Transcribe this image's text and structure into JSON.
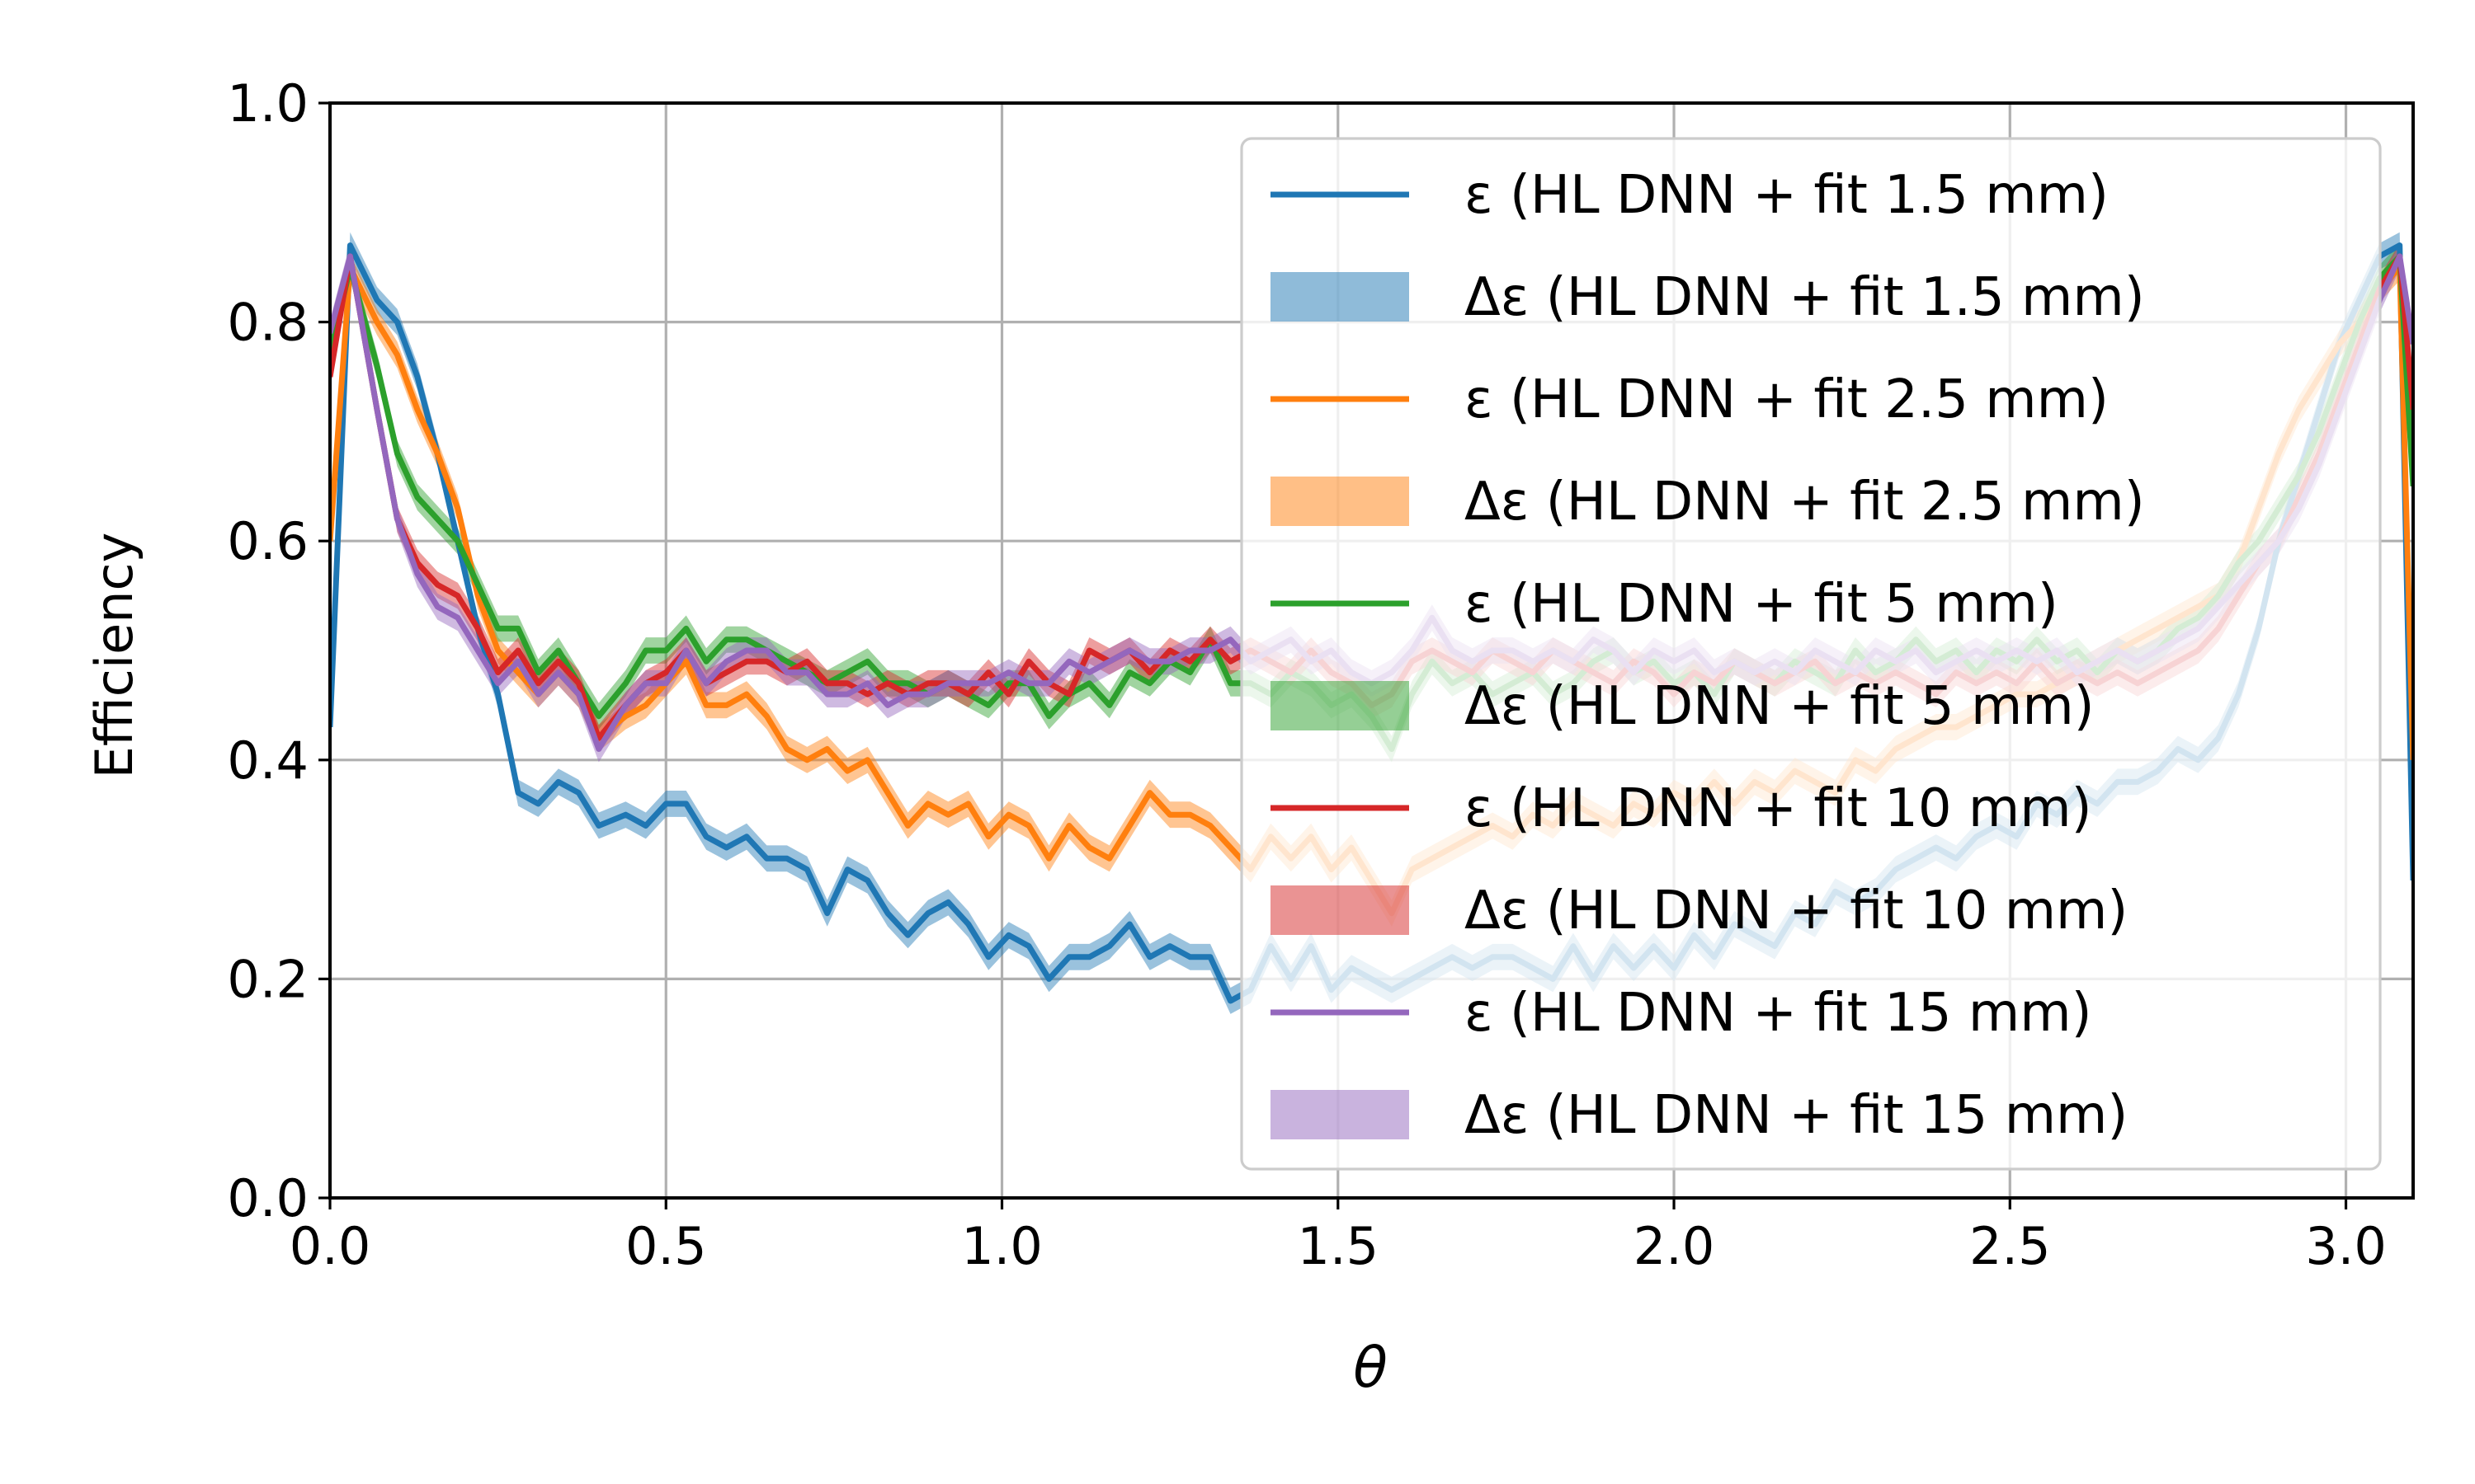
{
  "chart_data": {
    "type": "line",
    "title": "",
    "xlabel": "θ",
    "ylabel": "Efficiency",
    "xlim": [
      0,
      3.1
    ],
    "ylim": [
      0,
      1.0
    ],
    "xticks": [
      "0.0",
      "0.5",
      "1.0",
      "1.5",
      "2.0",
      "2.5",
      "3.0"
    ],
    "yticks": [
      "0.0",
      "0.2",
      "0.4",
      "0.6",
      "0.8",
      "1.0"
    ],
    "grid": true,
    "legend_position": "upper right",
    "band_halfwidth": 0.012,
    "x": [
      0.0,
      0.03,
      0.07,
      0.1,
      0.13,
      0.16,
      0.19,
      0.22,
      0.25,
      0.28,
      0.31,
      0.34,
      0.37,
      0.4,
      0.44,
      0.47,
      0.5,
      0.53,
      0.56,
      0.59,
      0.62,
      0.65,
      0.68,
      0.71,
      0.74,
      0.77,
      0.8,
      0.83,
      0.86,
      0.89,
      0.92,
      0.95,
      0.98,
      1.01,
      1.04,
      1.07,
      1.1,
      1.13,
      1.16,
      1.19,
      1.22,
      1.25,
      1.28,
      1.31,
      1.34,
      1.37,
      1.4,
      1.43,
      1.46,
      1.49,
      1.52,
      1.55,
      1.58,
      1.61,
      1.64,
      1.67,
      1.7,
      1.73,
      1.76,
      1.79,
      1.82,
      1.85,
      1.88,
      1.91,
      1.94,
      1.97,
      2.0,
      2.03,
      2.06,
      2.09,
      2.12,
      2.15,
      2.18,
      2.21,
      2.24,
      2.27,
      2.3,
      2.33,
      2.36,
      2.39,
      2.42,
      2.45,
      2.48,
      2.51,
      2.54,
      2.57,
      2.6,
      2.63,
      2.66,
      2.69,
      2.72,
      2.75,
      2.78,
      2.81,
      2.84,
      2.87,
      2.9,
      2.93,
      2.96,
      2.99,
      3.02,
      3.05,
      3.08,
      3.1
    ],
    "series": [
      {
        "name": "ε (HL DNN + fit 1.5 mm)",
        "band_name": "Δε (HL DNN + fit 1.5 mm)",
        "color": "#1f77b4",
        "values": [
          0.43,
          0.87,
          0.82,
          0.8,
          0.75,
          0.68,
          0.6,
          0.52,
          0.46,
          0.37,
          0.36,
          0.38,
          0.37,
          0.34,
          0.35,
          0.34,
          0.36,
          0.36,
          0.33,
          0.32,
          0.33,
          0.31,
          0.31,
          0.3,
          0.26,
          0.3,
          0.29,
          0.26,
          0.24,
          0.26,
          0.27,
          0.25,
          0.22,
          0.24,
          0.23,
          0.2,
          0.22,
          0.22,
          0.23,
          0.25,
          0.22,
          0.23,
          0.22,
          0.22,
          0.18,
          0.19,
          0.23,
          0.2,
          0.23,
          0.19,
          0.21,
          0.2,
          0.19,
          0.2,
          0.21,
          0.22,
          0.21,
          0.22,
          0.22,
          0.21,
          0.2,
          0.23,
          0.2,
          0.23,
          0.21,
          0.23,
          0.21,
          0.24,
          0.22,
          0.25,
          0.24,
          0.23,
          0.26,
          0.25,
          0.28,
          0.27,
          0.28,
          0.3,
          0.31,
          0.32,
          0.31,
          0.33,
          0.34,
          0.33,
          0.36,
          0.35,
          0.37,
          0.36,
          0.38,
          0.38,
          0.39,
          0.41,
          0.4,
          0.42,
          0.46,
          0.52,
          0.6,
          0.66,
          0.72,
          0.78,
          0.82,
          0.86,
          0.87,
          0.29
        ]
      },
      {
        "name": "ε (HL DNN + fit 2.5 mm)",
        "band_name": "Δε (HL DNN + fit 2.5 mm)",
        "color": "#ff7f0e",
        "values": [
          0.6,
          0.85,
          0.8,
          0.77,
          0.72,
          0.68,
          0.63,
          0.55,
          0.5,
          0.48,
          0.46,
          0.48,
          0.46,
          0.42,
          0.44,
          0.45,
          0.47,
          0.49,
          0.45,
          0.45,
          0.46,
          0.44,
          0.41,
          0.4,
          0.41,
          0.39,
          0.4,
          0.37,
          0.34,
          0.36,
          0.35,
          0.36,
          0.33,
          0.35,
          0.34,
          0.31,
          0.34,
          0.32,
          0.31,
          0.34,
          0.37,
          0.35,
          0.35,
          0.34,
          0.32,
          0.3,
          0.33,
          0.31,
          0.33,
          0.3,
          0.32,
          0.29,
          0.26,
          0.3,
          0.31,
          0.32,
          0.33,
          0.34,
          0.33,
          0.35,
          0.34,
          0.36,
          0.35,
          0.34,
          0.36,
          0.35,
          0.37,
          0.36,
          0.38,
          0.36,
          0.38,
          0.37,
          0.39,
          0.38,
          0.37,
          0.4,
          0.39,
          0.41,
          0.42,
          0.43,
          0.43,
          0.44,
          0.45,
          0.46,
          0.46,
          0.47,
          0.48,
          0.49,
          0.5,
          0.51,
          0.52,
          0.53,
          0.54,
          0.55,
          0.58,
          0.63,
          0.68,
          0.72,
          0.75,
          0.78,
          0.8,
          0.83,
          0.85,
          0.4
        ]
      },
      {
        "name": "ε (HL DNN + fit 5 mm)",
        "band_name": "Δε (HL DNN + fit 5 mm)",
        "color": "#2ca02c",
        "values": [
          0.77,
          0.85,
          0.76,
          0.68,
          0.64,
          0.62,
          0.6,
          0.56,
          0.52,
          0.52,
          0.48,
          0.5,
          0.47,
          0.44,
          0.47,
          0.5,
          0.5,
          0.52,
          0.49,
          0.51,
          0.51,
          0.5,
          0.49,
          0.48,
          0.47,
          0.48,
          0.49,
          0.47,
          0.47,
          0.46,
          0.47,
          0.46,
          0.45,
          0.47,
          0.47,
          0.44,
          0.46,
          0.47,
          0.45,
          0.48,
          0.47,
          0.49,
          0.48,
          0.51,
          0.47,
          0.47,
          0.46,
          0.48,
          0.47,
          0.45,
          0.46,
          0.44,
          0.41,
          0.46,
          0.49,
          0.47,
          0.48,
          0.46,
          0.47,
          0.48,
          0.46,
          0.47,
          0.49,
          0.5,
          0.48,
          0.49,
          0.47,
          0.48,
          0.46,
          0.49,
          0.48,
          0.47,
          0.49,
          0.48,
          0.47,
          0.5,
          0.48,
          0.49,
          0.51,
          0.49,
          0.5,
          0.48,
          0.5,
          0.49,
          0.51,
          0.49,
          0.5,
          0.48,
          0.5,
          0.49,
          0.5,
          0.52,
          0.53,
          0.55,
          0.58,
          0.6,
          0.63,
          0.66,
          0.7,
          0.75,
          0.8,
          0.84,
          0.86,
          0.65
        ]
      },
      {
        "name": "ε (HL DNN + fit 10 mm)",
        "band_name": "Δε (HL DNN + fit 10 mm)",
        "color": "#d62728",
        "values": [
          0.75,
          0.86,
          0.72,
          0.62,
          0.58,
          0.56,
          0.55,
          0.52,
          0.48,
          0.5,
          0.47,
          0.49,
          0.47,
          0.42,
          0.45,
          0.47,
          0.48,
          0.5,
          0.47,
          0.48,
          0.49,
          0.49,
          0.48,
          0.49,
          0.47,
          0.47,
          0.46,
          0.47,
          0.46,
          0.47,
          0.47,
          0.46,
          0.48,
          0.46,
          0.49,
          0.47,
          0.46,
          0.5,
          0.49,
          0.5,
          0.48,
          0.5,
          0.49,
          0.51,
          0.49,
          0.5,
          0.49,
          0.48,
          0.5,
          0.48,
          0.47,
          0.45,
          0.46,
          0.49,
          0.5,
          0.49,
          0.48,
          0.5,
          0.49,
          0.48,
          0.5,
          0.49,
          0.48,
          0.47,
          0.49,
          0.48,
          0.46,
          0.48,
          0.47,
          0.49,
          0.48,
          0.47,
          0.48,
          0.49,
          0.47,
          0.48,
          0.47,
          0.48,
          0.47,
          0.46,
          0.48,
          0.47,
          0.48,
          0.47,
          0.49,
          0.47,
          0.48,
          0.47,
          0.48,
          0.47,
          0.48,
          0.49,
          0.5,
          0.52,
          0.55,
          0.58,
          0.6,
          0.64,
          0.68,
          0.73,
          0.78,
          0.83,
          0.86,
          0.72
        ]
      },
      {
        "name": "ε (HL DNN + fit 15 mm)",
        "band_name": "Δε (HL DNN + fit 15 mm)",
        "color": "#9467bd",
        "values": [
          0.79,
          0.86,
          0.72,
          0.62,
          0.57,
          0.54,
          0.53,
          0.5,
          0.47,
          0.49,
          0.46,
          0.48,
          0.46,
          0.41,
          0.45,
          0.47,
          0.47,
          0.5,
          0.47,
          0.49,
          0.5,
          0.5,
          0.48,
          0.48,
          0.46,
          0.46,
          0.47,
          0.45,
          0.46,
          0.46,
          0.47,
          0.47,
          0.47,
          0.48,
          0.47,
          0.47,
          0.49,
          0.48,
          0.49,
          0.5,
          0.49,
          0.49,
          0.5,
          0.5,
          0.51,
          0.49,
          0.5,
          0.51,
          0.49,
          0.5,
          0.48,
          0.47,
          0.48,
          0.5,
          0.53,
          0.5,
          0.49,
          0.5,
          0.5,
          0.49,
          0.5,
          0.49,
          0.51,
          0.5,
          0.48,
          0.5,
          0.49,
          0.5,
          0.48,
          0.49,
          0.48,
          0.49,
          0.48,
          0.5,
          0.49,
          0.48,
          0.5,
          0.49,
          0.5,
          0.48,
          0.49,
          0.5,
          0.49,
          0.5,
          0.49,
          0.5,
          0.48,
          0.49,
          0.5,
          0.49,
          0.5,
          0.51,
          0.52,
          0.54,
          0.56,
          0.58,
          0.6,
          0.63,
          0.67,
          0.72,
          0.77,
          0.82,
          0.86,
          0.78
        ]
      }
    ]
  }
}
